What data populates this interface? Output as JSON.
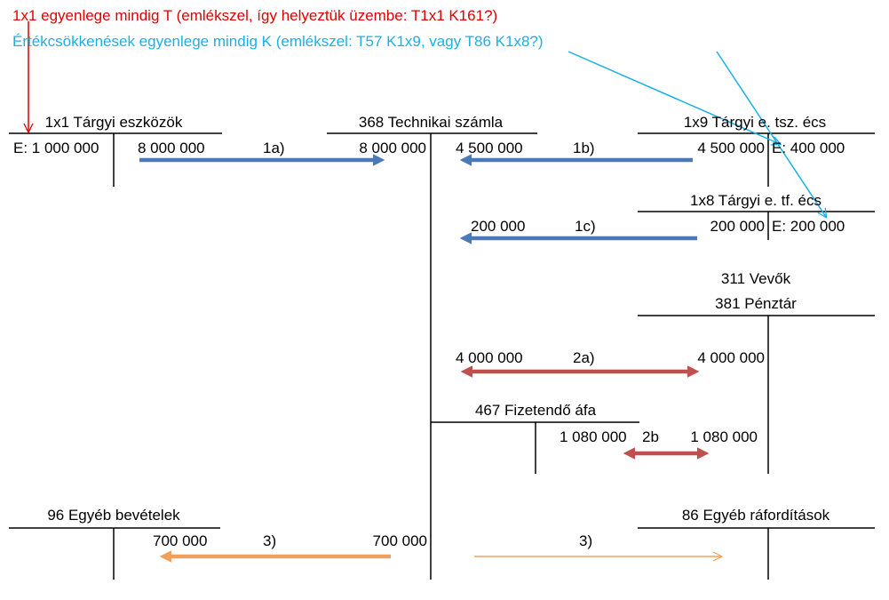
{
  "colors": {
    "red_note": "#e00000",
    "blue_note": "#1ab0e6",
    "blue_arrow": "#4a7bb6",
    "red_arrow": "#c0504d",
    "orange_arrow": "#f0a05a",
    "line": "#000000"
  },
  "notes": {
    "red": "1x1 egyenlege mindig T (emlékszel, így helyeztük üzembe: T1x1  K161?)",
    "blue": "Értékcsökkenések egyenlege mindig K (emlékszel: T57 K1x9, vagy T86 K1x8?)"
  },
  "accounts": {
    "a1x1": {
      "title": "1x1 Tárgyi eszközök",
      "debit_balance": "E: 1 000 000",
      "credit_1a": "8 000 000"
    },
    "a368": {
      "title": "368 Technikai számla",
      "debit_1a": "8 000 000",
      "credit_1b": "4 500 000",
      "credit_1c": "200 000",
      "credit_2a": "4 000 000",
      "debit_3": "700 000"
    },
    "a1x9": {
      "title": "1x9 Tárgyi e. tsz. écs",
      "debit_1b": "4 500 000",
      "credit_balance": "E: 400 000"
    },
    "a1x8": {
      "title": "1x8 Tárgyi e. tf. écs",
      "debit_1c": "200 000",
      "credit_balance": "E: 200 000"
    },
    "a311_381": {
      "title_line1": "311 Vevők",
      "title_line2": "381 Pénztár",
      "debit_2a": "4 000 000",
      "debit_2b": "1 080 000"
    },
    "a467": {
      "title": "467 Fizetendő áfa",
      "credit_2b": "1 080 000"
    },
    "a96": {
      "title": "96 Egyéb bevételek",
      "credit_3": "700 000"
    },
    "a86": {
      "title": "86 Egyéb ráfordítások"
    }
  },
  "steps": {
    "s1a": "1a)",
    "s1b": "1b)",
    "s1c": "1c)",
    "s2a": "2a)",
    "s2b": "2b",
    "s3_left": "3)",
    "s3_right": "3)"
  }
}
